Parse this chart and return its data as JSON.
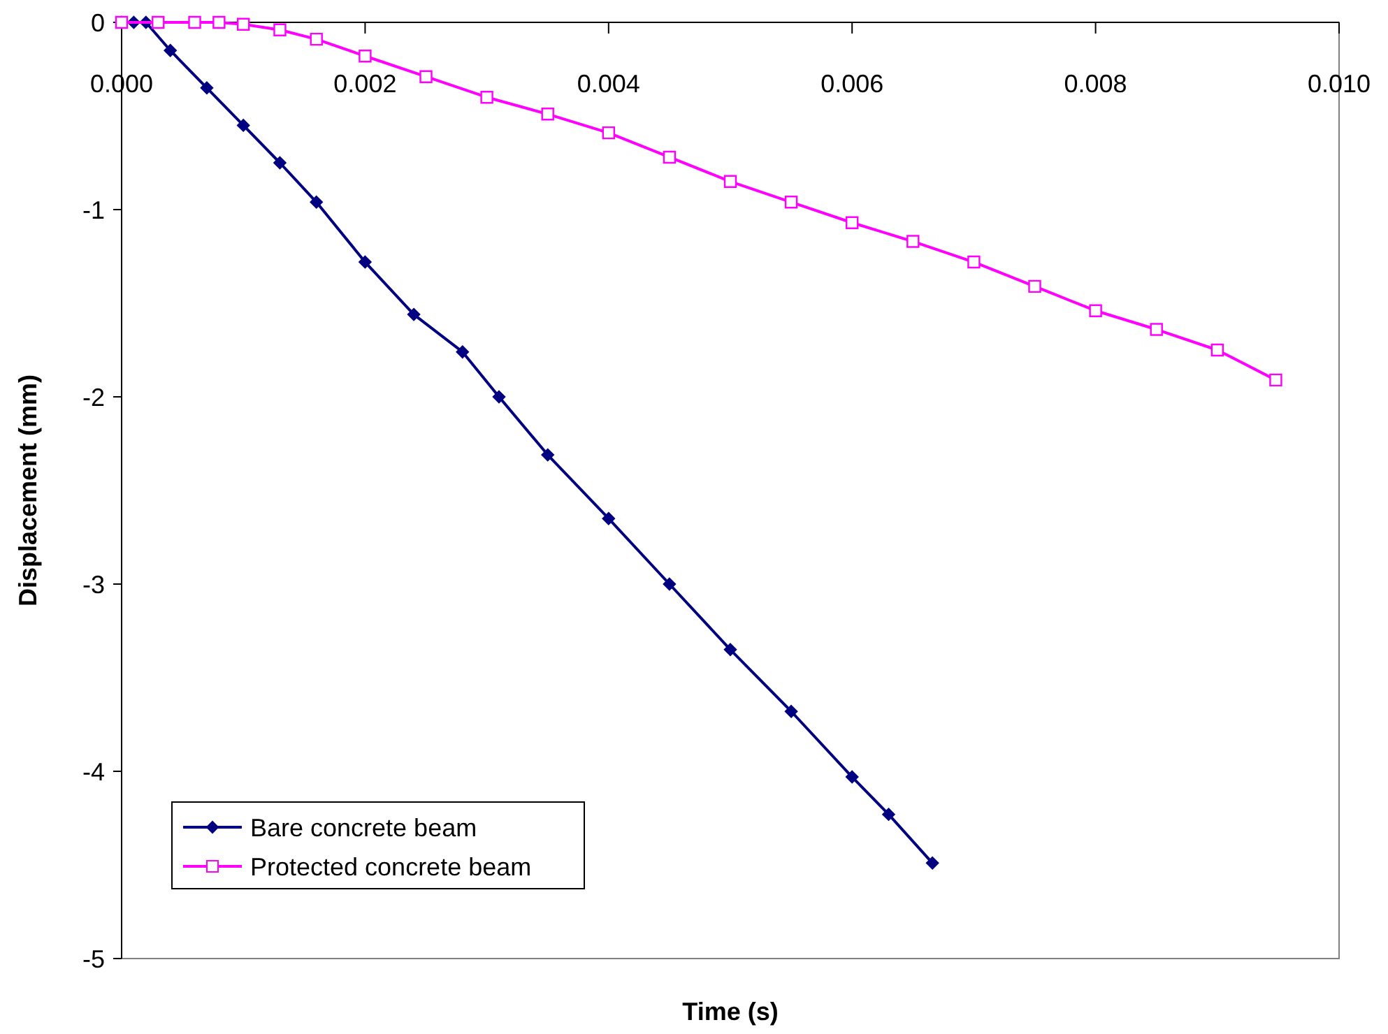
{
  "chart_data": {
    "type": "line",
    "xlabel": "Time (s)",
    "ylabel": "Displacement (mm)",
    "xlim": [
      0,
      0.01
    ],
    "xticks": [
      {
        "value": 0,
        "label": "0.000"
      },
      {
        "value": 0.002,
        "label": "0.002"
      },
      {
        "value": 0.004,
        "label": "0.004"
      },
      {
        "value": 0.006,
        "label": "0.006"
      },
      {
        "value": 0.008,
        "label": "0.008"
      },
      {
        "value": 0.01,
        "label": "0.010"
      }
    ],
    "ylim": [
      -5,
      0
    ],
    "yticks": [
      -5,
      -4,
      -3,
      -2,
      -1,
      0
    ],
    "grid": false,
    "legend": "bottom left",
    "line_style": "solid",
    "series": [
      {
        "name": "Bare concrete beam",
        "color": "#000080",
        "marker": "diamond",
        "x": [
          0,
          0.0001,
          0.0002,
          0.0004,
          0.0007,
          0.001,
          0.0013,
          0.0016,
          0.002,
          0.0024,
          0.0028,
          0.0031,
          0.0035,
          0.004,
          0.0045,
          0.005,
          0.0055,
          0.006,
          0.0063,
          0.00666
        ],
        "values": [
          0,
          0,
          0,
          -0.15,
          -0.35,
          -0.55,
          -0.75,
          -0.96,
          -1.28,
          -1.56,
          -1.76,
          -2.0,
          -2.31,
          -2.65,
          -3.0,
          -3.35,
          -3.68,
          -4.03,
          -4.23,
          -4.49
        ]
      },
      {
        "name": "Protected concrete beam",
        "color": "#ff00ff",
        "marker": "square",
        "x": [
          0,
          0.0003,
          0.0006,
          0.0008,
          0.001,
          0.0013,
          0.0016,
          0.002,
          0.0025,
          0.003,
          0.0035,
          0.004,
          0.0045,
          0.005,
          0.0055,
          0.006,
          0.0065,
          0.007,
          0.0075,
          0.008,
          0.0085,
          0.009,
          0.00948
        ],
        "values": [
          0,
          0,
          0,
          0,
          -0.01,
          -0.04,
          -0.09,
          -0.18,
          -0.29,
          -0.4,
          -0.49,
          -0.59,
          -0.72,
          -0.85,
          -0.96,
          -1.07,
          -1.17,
          -1.28,
          -1.41,
          -1.54,
          -1.64,
          -1.75,
          -1.91
        ]
      }
    ]
  }
}
